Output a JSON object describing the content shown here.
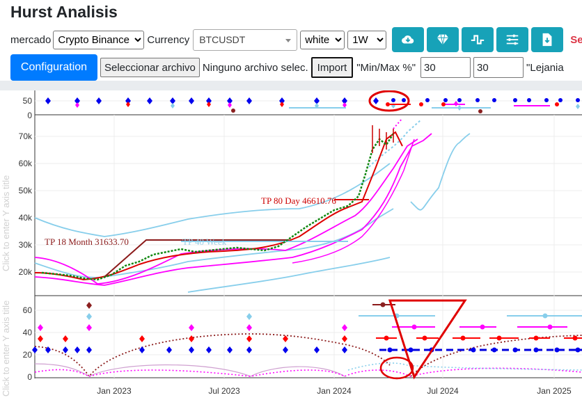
{
  "app": {
    "title": "Hurst Analisis"
  },
  "controls": {
    "market_label": "mercado",
    "market_value": "Crypto Binance",
    "currency_label": "Currency",
    "currency_value": "BTCUSDT",
    "theme_value": "white",
    "interval_value": "1W",
    "icons": [
      "cloud-download-icon",
      "diamond-icon",
      "pulse-wave-icon",
      "sliders-icon",
      "file-download-icon"
    ],
    "truncated_label": "Se",
    "config_button": "Configuration",
    "file_button": "Seleccionar archivo",
    "file_status": "Ninguno archivo selec.",
    "import_button": "Import",
    "minmax_label": "\"Min/Max %\"",
    "minmax_value1": "30",
    "minmax_value2": "30",
    "lejania_label": "\"Lejania"
  },
  "chart_data": [
    {
      "type": "scatter",
      "panel": "top-indicator",
      "yticks": [
        "50",
        "0"
      ],
      "ylabel": "Click to enter Y axis title",
      "series": [
        {
          "color": "#0000ee",
          "marker": "diamond",
          "y": 50,
          "x": [
            "2022-10-01",
            "2022-11-28",
            "2023-01-23",
            "2023-03-19",
            "2023-05-15",
            "2023-07-10",
            "2023-09-05",
            "2023-10-31",
            "2023-12-26",
            "2024-02-20",
            "2024-04-16"
          ]
        },
        {
          "color": "#ff00ff",
          "marker": "diamond",
          "y": 45,
          "x": [
            "2022-11-28",
            "2023-05-15",
            "2023-10-31",
            "2024-03-18"
          ]
        }
      ]
    },
    {
      "type": "line",
      "panel": "price",
      "yticks": [
        "70k",
        "60k",
        "50k",
        "40k",
        "30k",
        "20k"
      ],
      "ylabel": "Click to enter Y axis title",
      "annotations": [
        {
          "text": "TP 80 Day 46610.76",
          "color": "#cc0000"
        },
        {
          "text": "TP 18 Month 31633.70",
          "color": "#8b1a1a"
        },
        {
          "text": "TP 40 Week",
          "color": "#9bd0e8"
        }
      ],
      "approx_close": [
        {
          "x": "2022-10",
          "y": 19500
        },
        {
          "x": "2022-11",
          "y": 17000
        },
        {
          "x": "2023-01",
          "y": 23000
        },
        {
          "x": "2023-03",
          "y": 28000
        },
        {
          "x": "2023-06",
          "y": 30000
        },
        {
          "x": "2023-09",
          "y": 26500
        },
        {
          "x": "2023-11",
          "y": 37000
        },
        {
          "x": "2024-01",
          "y": 43000
        },
        {
          "x": "2024-02",
          "y": 51000
        },
        {
          "x": "2024-03",
          "y": 68000
        },
        {
          "x": "2024-04",
          "y": 64000
        }
      ]
    },
    {
      "type": "line",
      "panel": "cycles",
      "yticks": [
        "60",
        "40",
        "20",
        "0"
      ],
      "ylabel": "Click to enter Y axis title",
      "xticks": [
        "Jan 2023",
        "Jul 2023",
        "Jan 2024",
        "Jul 2024",
        "Jan 2025"
      ],
      "levels": [
        {
          "color": "#8b1a1a",
          "y": 65
        },
        {
          "color": "#87ceeb",
          "y": 55
        },
        {
          "color": "#ff00ff",
          "y": 45
        },
        {
          "color": "#ff0000",
          "y": 35
        },
        {
          "color": "#0000ee",
          "y": 25
        }
      ]
    }
  ]
}
